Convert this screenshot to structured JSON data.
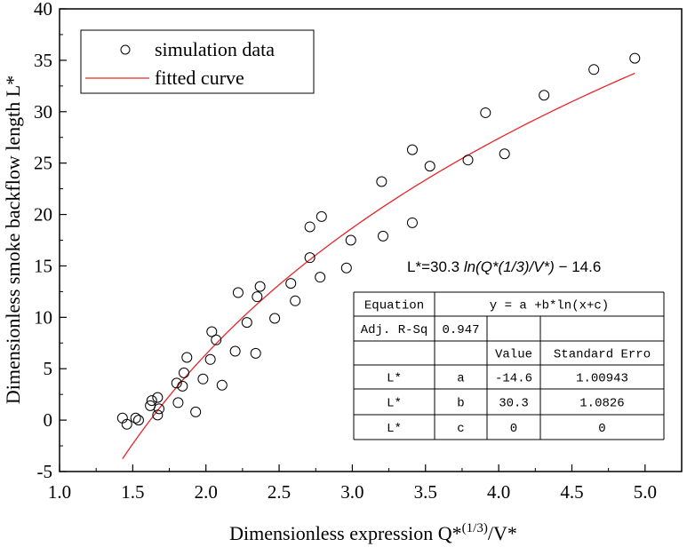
{
  "chart_data": {
    "type": "scatter",
    "xlabel": "Dimensionless expression Q*(1/3)/V*",
    "ylabel": "Dimensionless smoke backflow length L*",
    "xlim": [
      1.0,
      5.25
    ],
    "ylim": [
      -5,
      40
    ],
    "xticks": [
      1.0,
      1.5,
      2.0,
      2.5,
      3.0,
      3.5,
      4.0,
      4.5,
      5.0
    ],
    "xtick_labels": [
      "1.0",
      "1.5",
      "2.0",
      "2.5",
      "3.0",
      "3.5",
      "4.0",
      "4.5",
      "5.0"
    ],
    "yticks": [
      -5,
      0,
      5,
      10,
      15,
      20,
      25,
      30,
      35,
      40
    ],
    "ytick_labels": [
      "-5",
      "0",
      "5",
      "10",
      "15",
      "20",
      "25",
      "30",
      "35",
      "40"
    ],
    "grid": false,
    "legend_position": "top-left",
    "series": [
      {
        "name": "simulation data",
        "marker": "open-circle",
        "color": "#000000",
        "points": [
          [
            1.43,
            0.2
          ],
          [
            1.46,
            -0.4
          ],
          [
            1.52,
            0.2
          ],
          [
            1.54,
            0.0
          ],
          [
            1.62,
            1.4
          ],
          [
            1.63,
            1.9
          ],
          [
            1.67,
            0.5
          ],
          [
            1.68,
            1.1
          ],
          [
            1.67,
            2.2
          ],
          [
            1.8,
            3.6
          ],
          [
            1.81,
            1.7
          ],
          [
            1.84,
            3.3
          ],
          [
            1.85,
            4.6
          ],
          [
            1.87,
            6.1
          ],
          [
            1.93,
            0.8
          ],
          [
            1.98,
            4.0
          ],
          [
            2.03,
            5.9
          ],
          [
            2.04,
            8.6
          ],
          [
            2.07,
            7.8
          ],
          [
            2.11,
            3.4
          ],
          [
            2.2,
            6.7
          ],
          [
            2.22,
            12.4
          ],
          [
            2.28,
            9.5
          ],
          [
            2.34,
            6.5
          ],
          [
            2.35,
            12.0
          ],
          [
            2.37,
            13.0
          ],
          [
            2.47,
            9.9
          ],
          [
            2.58,
            13.3
          ],
          [
            2.61,
            11.6
          ],
          [
            2.71,
            18.8
          ],
          [
            2.71,
            15.8
          ],
          [
            2.78,
            13.9
          ],
          [
            2.79,
            19.8
          ],
          [
            2.96,
            14.8
          ],
          [
            2.99,
            17.5
          ],
          [
            3.2,
            23.2
          ],
          [
            3.21,
            17.9
          ],
          [
            3.41,
            26.3
          ],
          [
            3.41,
            19.2
          ],
          [
            3.53,
            24.7
          ],
          [
            3.79,
            25.3
          ],
          [
            3.91,
            29.9
          ],
          [
            4.04,
            25.9
          ],
          [
            4.31,
            31.6
          ],
          [
            4.65,
            34.1
          ],
          [
            4.93,
            35.2
          ]
        ]
      },
      {
        "name": "fitted curve",
        "type": "line",
        "color": "#e8262a",
        "model": "y = a + b*ln(x+c)",
        "params": {
          "a": -14.6,
          "b": 30.3,
          "c": 0
        },
        "x_range": [
          1.43,
          4.93
        ]
      }
    ],
    "annotation": {
      "equation_lead": "L*=30.3 ",
      "equation_math": "ln(Q*(1/3)/V*)",
      "equation_tail": " − 14.6"
    },
    "fit_table": {
      "rows": [
        [
          "Equation",
          "y = a +b*ln(x+c)",
          "",
          ""
        ],
        [
          "Adj. R-Sq",
          "0.947",
          "",
          ""
        ],
        [
          "",
          "",
          "Value",
          "Standard Erro"
        ],
        [
          "L*",
          "a",
          "-14.6",
          "1.00943"
        ],
        [
          "L*",
          "b",
          "30.3",
          "1.0826"
        ],
        [
          "L*",
          "c",
          "0",
          "0"
        ]
      ]
    }
  }
}
